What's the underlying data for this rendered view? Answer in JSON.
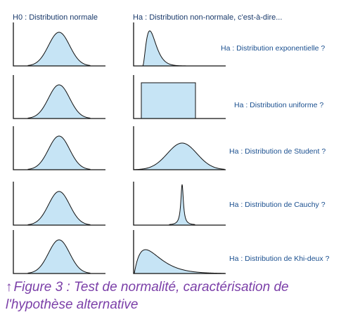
{
  "headers": {
    "h0": "H0 : Distribution normale",
    "ha": "Ha : Distribution non-normale, c'est-à-dire..."
  },
  "rows": [
    {
      "alt_type": "exponential",
      "label": "Ha : Distribution exponentielle ?"
    },
    {
      "alt_type": "uniform",
      "label": "Ha : Distribution uniforme ?"
    },
    {
      "alt_type": "student",
      "label": "Ha : Distribution de Student ?"
    },
    {
      "alt_type": "cauchy",
      "label": "Ha : Distribution de Cauchy ?"
    },
    {
      "alt_type": "chi-square",
      "label": "Ha : Distribution de Khi-deux ?"
    }
  ],
  "caption": {
    "arrow": "↑",
    "text": "Figure 3 : Test de normalité, caractérisation de l'hypothèse alternative"
  },
  "colors": {
    "fill": "#c6e4f5",
    "stroke": "#111111",
    "label": "#1a4f8f",
    "caption": "#7b3fa8"
  }
}
